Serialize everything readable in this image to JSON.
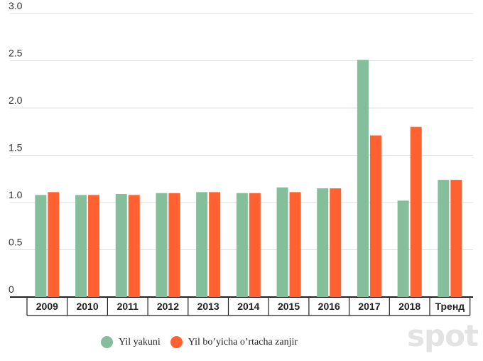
{
  "chart_data": {
    "type": "bar",
    "categories": [
      "2009",
      "2010",
      "2011",
      "2012",
      "2013",
      "2014",
      "2015",
      "2016",
      "2017",
      "2018",
      "Тренд"
    ],
    "series": [
      {
        "name": "Yil yakuni",
        "color": "#84be9b",
        "values": [
          1.08,
          1.08,
          1.09,
          1.1,
          1.11,
          1.1,
          1.16,
          1.15,
          2.51,
          1.02,
          1.24
        ]
      },
      {
        "name": "Yil bo’yicha o’rtacha zanjir",
        "color": "#ff6131",
        "values": [
          1.11,
          1.08,
          1.08,
          1.1,
          1.11,
          1.1,
          1.11,
          1.15,
          1.71,
          1.8,
          1.24
        ]
      }
    ],
    "yticks": [
      "0",
      "0.5",
      "1.0",
      "1.5",
      "2.0",
      "2.5",
      "3.0"
    ],
    "ylim": [
      0,
      3.0
    ],
    "grid": true,
    "legend_position": "bottom-left"
  },
  "watermark": "spot"
}
